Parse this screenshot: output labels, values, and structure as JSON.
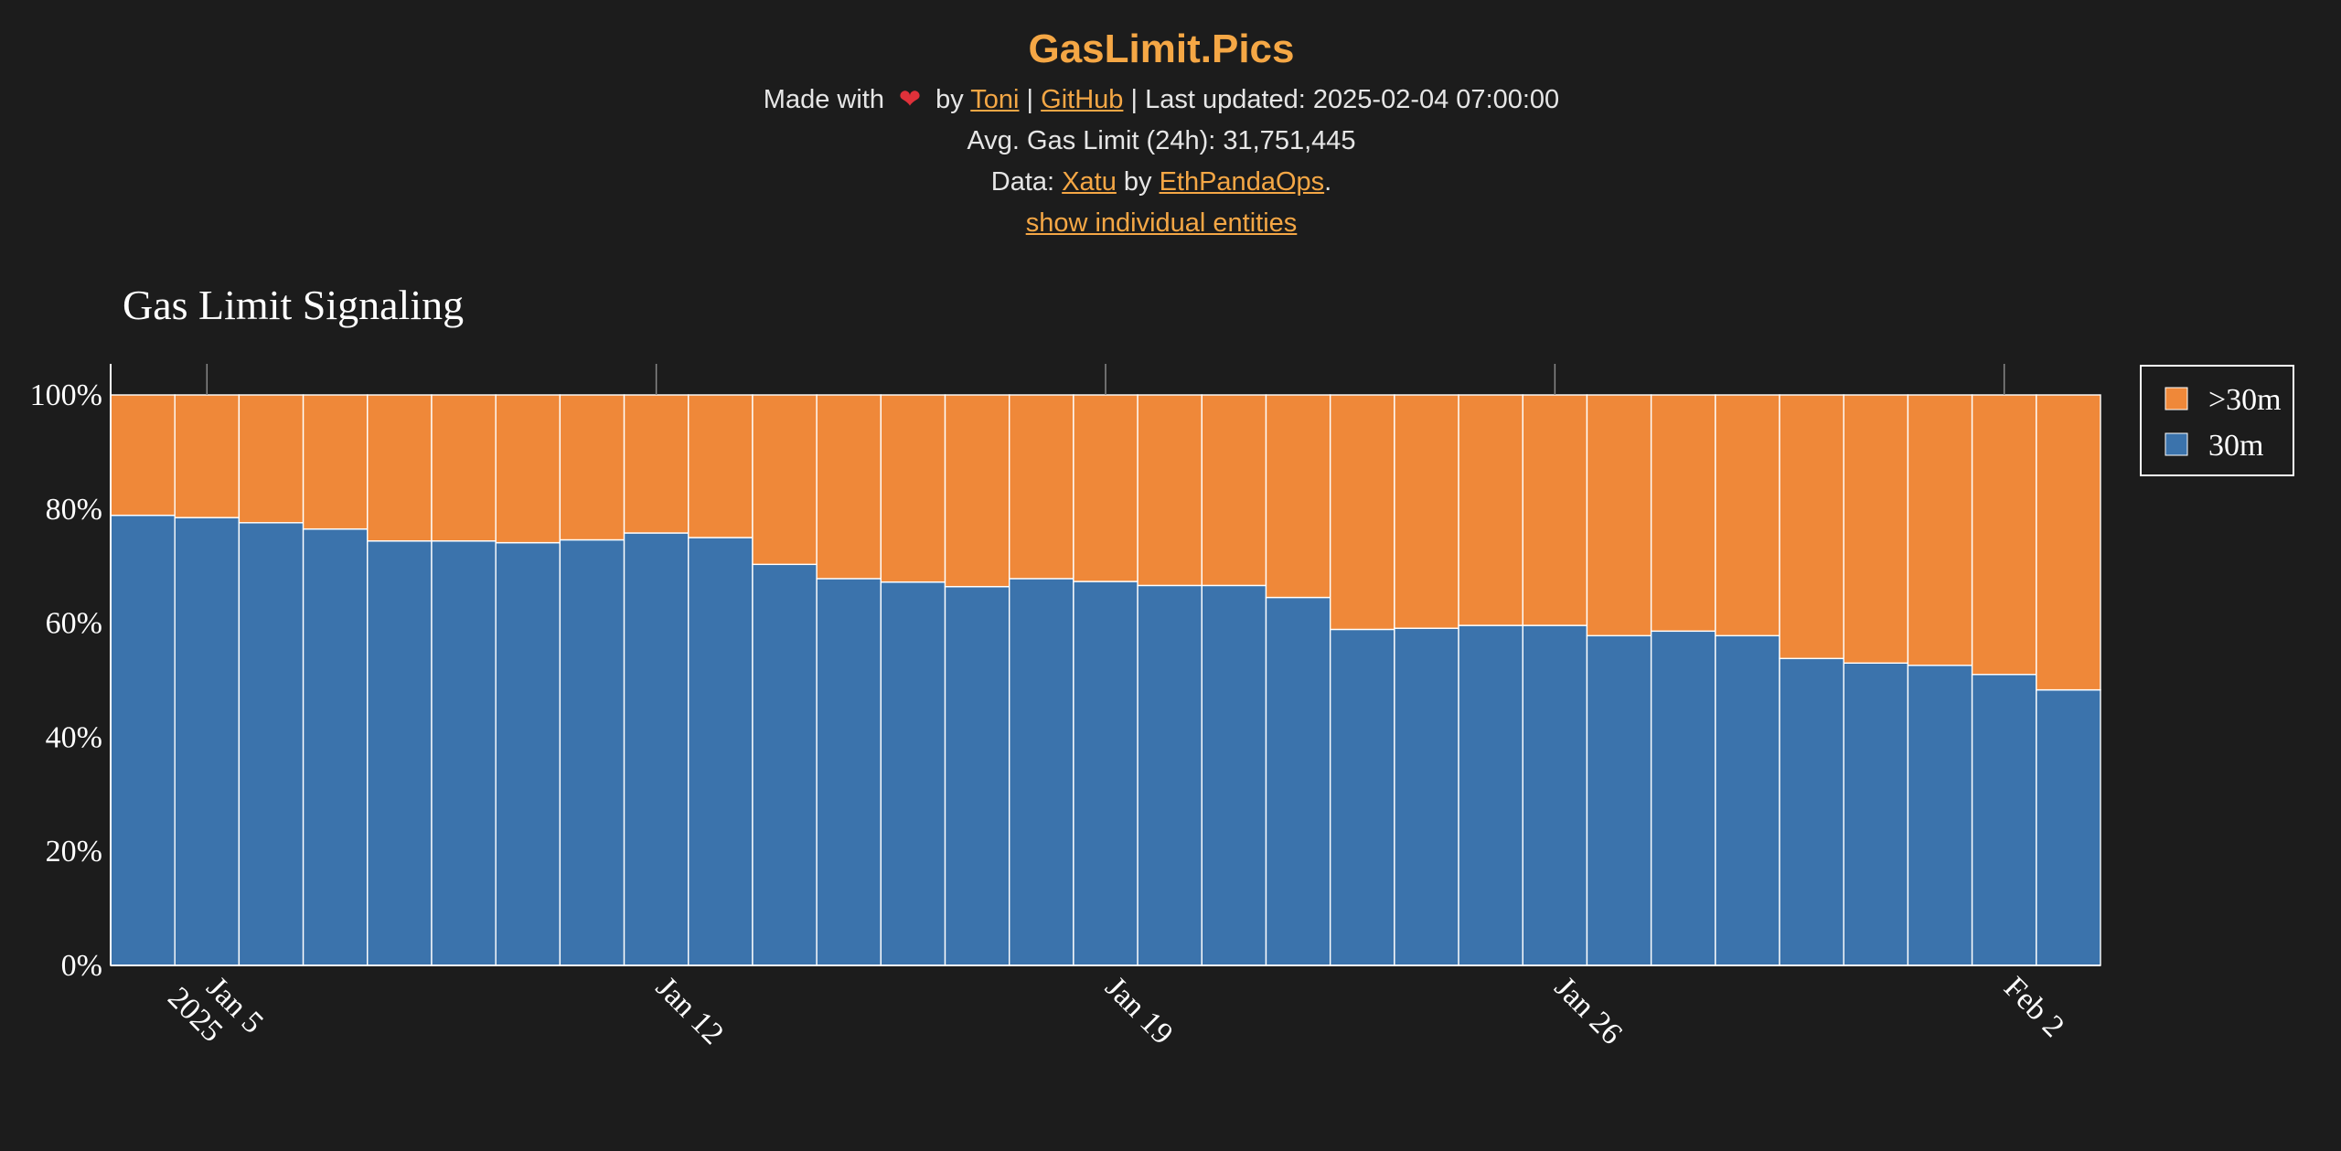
{
  "header": {
    "site_title": "GasLimit.Pics",
    "made_with": "Made with",
    "by": "by",
    "author_link": "Toni",
    "sep1": "|",
    "github_link": "GitHub",
    "sep2": "|",
    "last_updated": "Last updated: 2025-02-04 07:00:00",
    "avg_gas_limit": "Avg. Gas Limit (24h): 31,751,445",
    "data_prefix": "Data:",
    "data_source_link": "Xatu",
    "data_by": "by",
    "data_org_link": "EthPandaOps",
    "data_period": ".",
    "toggle_link": "show individual entities",
    "heart_icon": "heart-icon",
    "accent_color": "#f5a745"
  },
  "chart_data": {
    "type": "bar",
    "stacked": true,
    "title": "Gas Limit Signaling",
    "xlabel": "",
    "ylabel": "",
    "ylim": [
      0,
      100
    ],
    "y_ticks": [
      "0%",
      "20%",
      "40%",
      "60%",
      "80%",
      "100%"
    ],
    "x_tick_labels": [
      {
        "date": "2025-01-05",
        "label": "Jan 5",
        "sublabel": "2025"
      },
      {
        "date": "2025-01-12",
        "label": "Jan 12"
      },
      {
        "date": "2025-01-19",
        "label": "Jan 19"
      },
      {
        "date": "2025-01-26",
        "label": "Jan 26"
      },
      {
        "date": "2025-02-02",
        "label": "Feb 2"
      }
    ],
    "categories": [
      "2025-01-04",
      "2025-01-05",
      "2025-01-06",
      "2025-01-07",
      "2025-01-08",
      "2025-01-09",
      "2025-01-10",
      "2025-01-11",
      "2025-01-12",
      "2025-01-13",
      "2025-01-14",
      "2025-01-15",
      "2025-01-16",
      "2025-01-17",
      "2025-01-18",
      "2025-01-19",
      "2025-01-20",
      "2025-01-21",
      "2025-01-22",
      "2025-01-23",
      "2025-01-24",
      "2025-01-25",
      "2025-01-26",
      "2025-01-27",
      "2025-01-28",
      "2025-01-29",
      "2025-01-30",
      "2025-01-31",
      "2025-02-01",
      "2025-02-02",
      "2025-02-03"
    ],
    "series": [
      {
        "name": "30m",
        "color": "#3b73ac",
        "values": [
          78.9,
          78.5,
          77.6,
          76.5,
          74.4,
          74.4,
          74.1,
          74.6,
          75.8,
          75.0,
          70.3,
          67.8,
          67.2,
          66.4,
          67.8,
          67.3,
          66.6,
          66.6,
          64.5,
          58.9,
          59.1,
          59.6,
          59.6,
          57.8,
          58.6,
          57.8,
          53.8,
          53.0,
          52.6,
          51.0,
          48.3
        ]
      },
      {
        "name": ">30m",
        "color": "#ef8839",
        "values": [
          21.1,
          21.5,
          22.4,
          23.5,
          25.6,
          25.6,
          25.9,
          25.4,
          24.2,
          25.0,
          29.7,
          32.2,
          32.8,
          33.6,
          32.2,
          32.7,
          33.4,
          33.4,
          35.5,
          41.1,
          40.9,
          40.4,
          40.4,
          42.2,
          41.4,
          42.2,
          46.2,
          47.0,
          47.4,
          49.0,
          51.7
        ]
      }
    ],
    "legend": {
      "placement": "top-right",
      "entries": [
        ">30m",
        "30m"
      ]
    },
    "background_color": "#1c1c1c",
    "grid": false
  }
}
